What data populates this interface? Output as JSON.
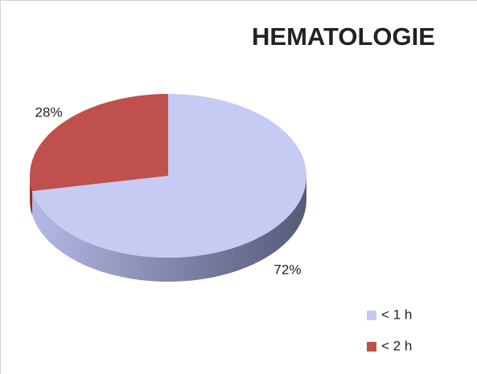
{
  "chart_data": {
    "type": "pie",
    "title": "HEMATOLOGIE",
    "categories": [
      "< 1 h",
      "< 2 h"
    ],
    "values": [
      72,
      28
    ],
    "value_labels": [
      "72%",
      "28%"
    ],
    "colors": [
      "#c6cbf3",
      "#c0504d"
    ],
    "legend": "bottom-right"
  }
}
